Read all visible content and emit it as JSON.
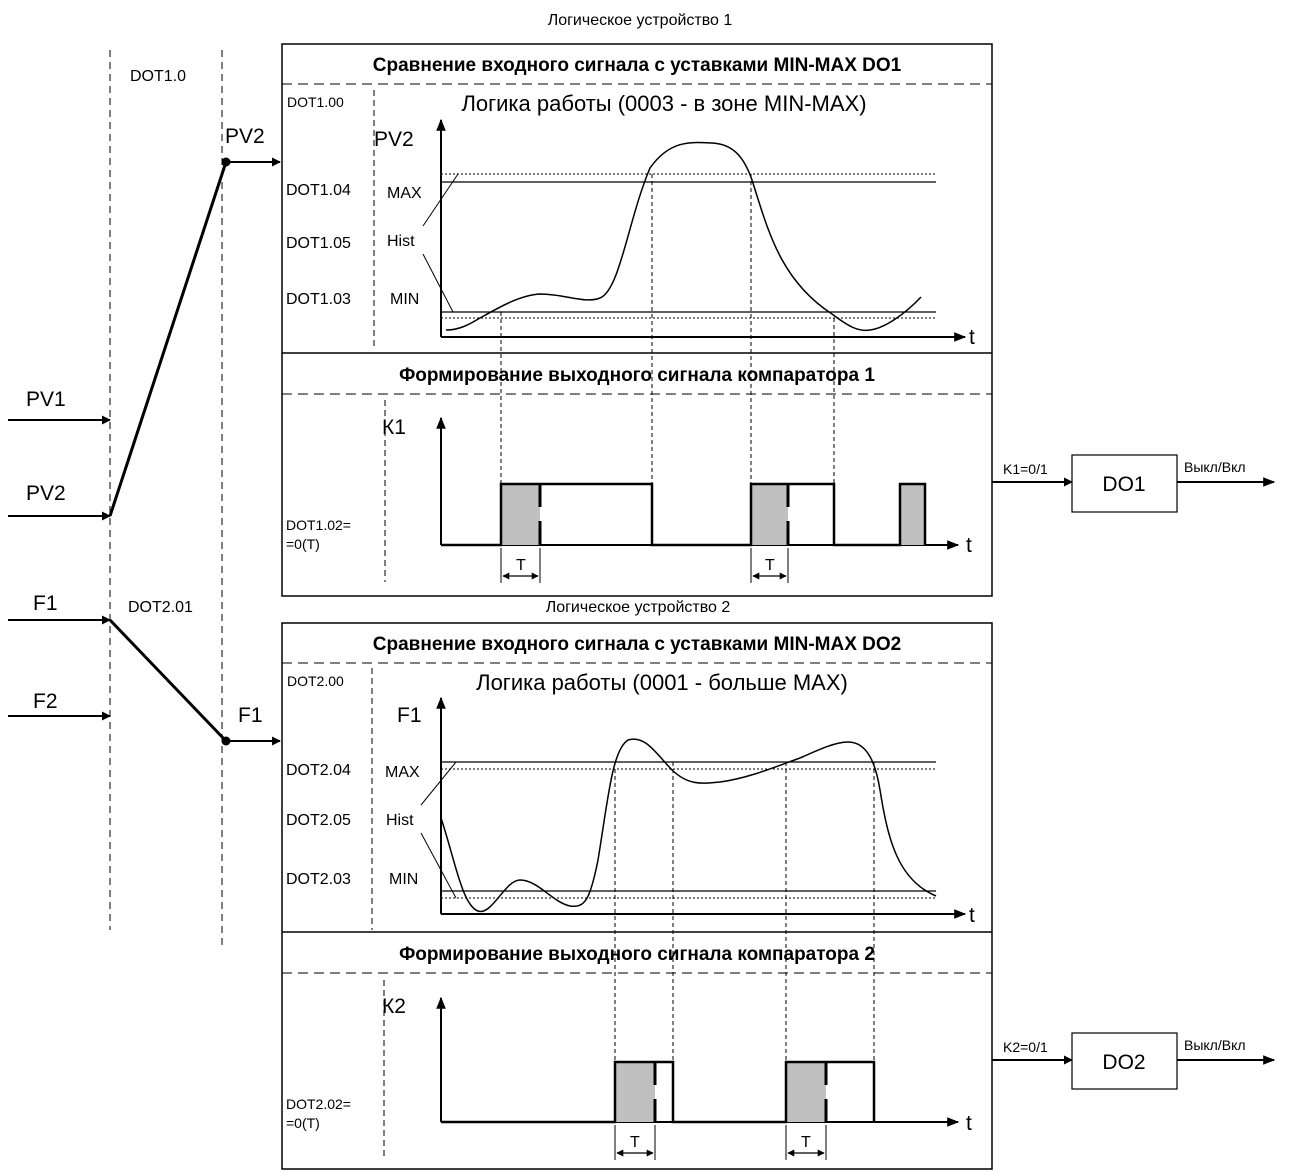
{
  "top_labels": {
    "unit1_title": "Логическое устройство 1",
    "unit2_title": "Логическое устройство 2",
    "dot1_0": "DOT1.0",
    "dot2_01": "DOT2.01"
  },
  "inputs": {
    "pv1": "PV1",
    "pv2": "PV2",
    "f1": "F1",
    "f2": "F2",
    "sel1_out": "PV2",
    "sel2_out": "F1"
  },
  "unit1": {
    "compare_header": "Сравнение входного сигнала с уставками MIN-MAX  DO1",
    "logic_param": "DOT1.00",
    "logic_text": "Логика работы (0003 - в зоне MIN-MAX)",
    "y_axis": "PV2",
    "x_axis": "t",
    "max_param": "DOT1.04",
    "max_label": "MAX",
    "hist_param": "DOT1.05",
    "hist_label": "Hist",
    "min_param": "DOT1.03",
    "min_label": "MIN",
    "form_header": "Формирование выходного сигнала компаратора 1",
    "k_axis": "К1",
    "k_x_axis": "t",
    "delay_param_1": "DOT1.02=",
    "delay_param_2": "=0(T)",
    "t_label_a": "T",
    "t_label_b": "T",
    "out_signal": "K1=0/1",
    "out_block": "DO1",
    "out_state": "Выкл/Вкл"
  },
  "unit2": {
    "compare_header": "Сравнение входного сигнала с уставками MIN-MAX  DO2",
    "logic_param": "DOT2.00",
    "logic_text": "Логика работы (0001 - больше MAX)",
    "y_axis": "F1",
    "x_axis": "t",
    "max_param": "DOT2.04",
    "max_label": "MAX",
    "hist_param": "DOT2.05",
    "hist_label": "Hist",
    "min_param": "DOT2.03",
    "min_label": "MIN",
    "form_header": "Формирование выходного сигнала компаратора 2",
    "k_axis": "К2",
    "k_x_axis": "t",
    "delay_param_1": "DOT2.02=",
    "delay_param_2": "=0(T)",
    "t_label_a": "T",
    "t_label_b": "T",
    "out_signal": "K2=0/1",
    "out_block": "DO2",
    "out_state": "Выкл/Вкл"
  },
  "colors": {
    "line": "#000000",
    "delay_fill": "#c0c0c0",
    "background": "#ffffff"
  }
}
